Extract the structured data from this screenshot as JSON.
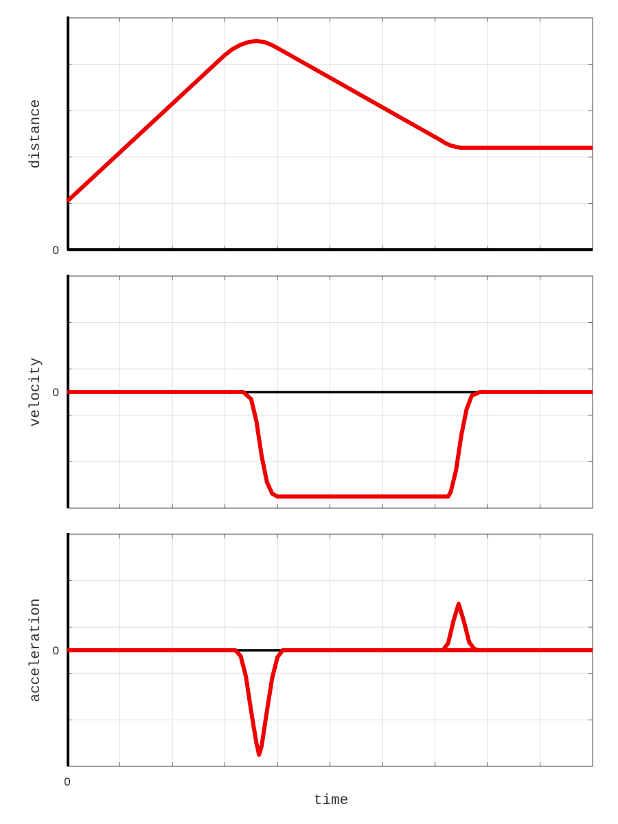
{
  "figure": {
    "xlabel": "time",
    "x_zero_label": "0",
    "colors": {
      "curve": "#ee0000",
      "axis": "#000000",
      "grid": "#dddddd",
      "frame": "#444444"
    }
  },
  "chart_data": [
    {
      "type": "line",
      "ylabel": "distance",
      "zero_label": "0",
      "xlim": [
        0,
        10
      ],
      "ylim": [
        0,
        5
      ],
      "grid": true,
      "x": [
        0,
        3.0,
        3.15,
        3.3,
        3.45,
        3.6,
        3.75,
        3.9,
        4.0,
        7.1,
        7.2,
        7.3,
        7.4,
        7.5,
        10
      ],
      "values": [
        1.05,
        4.2,
        4.33,
        4.42,
        4.48,
        4.5,
        4.48,
        4.41,
        4.35,
        2.37,
        2.3,
        2.25,
        2.22,
        2.2,
        2.2
      ]
    },
    {
      "type": "line",
      "ylabel": "velocity",
      "zero_label": "0",
      "xlim": [
        0,
        10
      ],
      "ylim": [
        -2,
        2
      ],
      "grid": true,
      "baseline": 0,
      "x": [
        0,
        3.35,
        3.5,
        3.6,
        3.7,
        3.8,
        3.9,
        4.0,
        7.25,
        7.3,
        7.4,
        7.5,
        7.6,
        7.7,
        7.85,
        10
      ],
      "values": [
        0,
        0,
        -0.12,
        -0.5,
        -1.1,
        -1.55,
        -1.75,
        -1.8,
        -1.8,
        -1.72,
        -1.35,
        -0.75,
        -0.3,
        -0.06,
        0,
        0
      ]
    },
    {
      "type": "line",
      "ylabel": "acceleration",
      "zero_label": "0",
      "xlim": [
        0,
        10
      ],
      "ylim": [
        -2,
        2
      ],
      "grid": true,
      "baseline": 0,
      "x": [
        0,
        3.2,
        3.3,
        3.4,
        3.5,
        3.6,
        3.65,
        3.7,
        3.8,
        3.9,
        4.0,
        4.1,
        4.2,
        10
      ],
      "values": [
        0,
        0,
        -0.1,
        -0.45,
        -1.05,
        -1.6,
        -1.8,
        -1.65,
        -1.05,
        -0.48,
        -0.12,
        0,
        0,
        0
      ],
      "peak": {
        "x": [
          7.15,
          7.25,
          7.35,
          7.45,
          7.55,
          7.65,
          7.75,
          7.85
        ],
        "values": [
          0,
          0.12,
          0.5,
          0.8,
          0.5,
          0.14,
          0.02,
          0
        ]
      }
    }
  ]
}
